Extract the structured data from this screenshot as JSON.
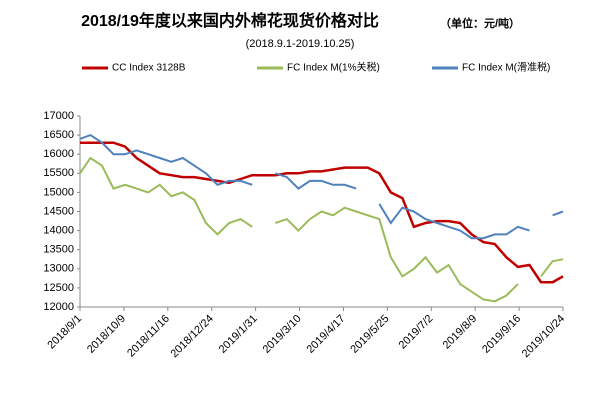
{
  "chart_data": {
    "type": "line",
    "title": "2018/19年度以来国内外棉花现货价格对比",
    "unit_note": "（单位：元/吨）",
    "subtitle": "(2018.9.1-2019.10.25)",
    "x": [
      "2018/9/1",
      "2018/9/10",
      "2018/9/20",
      "2018/9/30",
      "2018/10/10",
      "2018/10/20",
      "2018/10/30",
      "2018/11/9",
      "2018/11/19",
      "2018/11/29",
      "2018/12/9",
      "2018/12/19",
      "2018/12/29",
      "2019/1/8",
      "2019/1/18",
      "2019/1/28",
      "2019/2/7",
      "2019/2/17",
      "2019/2/27",
      "2019/3/9",
      "2019/3/19",
      "2019/3/29",
      "2019/4/8",
      "2019/4/18",
      "2019/4/28",
      "2019/5/8",
      "2019/5/18",
      "2019/5/28",
      "2019/6/7",
      "2019/6/17",
      "2019/6/27",
      "2019/7/7",
      "2019/7/17",
      "2019/7/27",
      "2019/8/6",
      "2019/8/16",
      "2019/8/26",
      "2019/9/5",
      "2019/9/15",
      "2019/9/25",
      "2019/10/5",
      "2019/10/15",
      "2019/10/24"
    ],
    "series": [
      {
        "name": "CC Index 3128B",
        "color": "#c00000",
        "values": [
          16300,
          16300,
          16300,
          16300,
          16200,
          15900,
          15700,
          15500,
          15450,
          15400,
          15400,
          15350,
          15300,
          15250,
          15350,
          15450,
          15450,
          15450,
          15500,
          15500,
          15550,
          15550,
          15600,
          15650,
          15650,
          15650,
          15500,
          15000,
          14850,
          14100,
          14200,
          14250,
          14250,
          14200,
          13900,
          13700,
          13650,
          13300,
          13050,
          13100,
          12650,
          12650,
          12800
        ]
      },
      {
        "name": "FC Index M(1%关税)",
        "color": "#9bbb59",
        "values": [
          15500,
          15900,
          15700,
          15100,
          15200,
          15100,
          15000,
          15200,
          14900,
          15000,
          14800,
          14200,
          13900,
          14200,
          14300,
          14100,
          null,
          14200,
          14300,
          14000,
          14300,
          14500,
          14400,
          14600,
          14500,
          14400,
          14300,
          13300,
          12800,
          13000,
          13300,
          12900,
          13100,
          12600,
          12400,
          12200,
          12150,
          12300,
          12600,
          null,
          12800,
          13200,
          13250
        ]
      },
      {
        "name": "FC Index M(滑准税)",
        "color": "#4f81bd",
        "values": [
          16400,
          16500,
          16300,
          16000,
          16000,
          16100,
          16000,
          15900,
          15800,
          15900,
          15700,
          15500,
          15200,
          15300,
          15300,
          15200,
          null,
          15500,
          15400,
          15100,
          15300,
          15300,
          15200,
          15200,
          15100,
          null,
          14700,
          14200,
          14600,
          14500,
          14300,
          14200,
          14100,
          14000,
          13800,
          13800,
          13900,
          13900,
          14100,
          14000,
          null,
          14400,
          14500
        ]
      }
    ],
    "xlim": [
      "2018/9/1",
      "2019/10/24"
    ],
    "xticks": [
      "2018/9/1",
      "2018/10/9",
      "2018/11/16",
      "2018/12/24",
      "2019/1/31",
      "2019/3/10",
      "2019/4/17",
      "2019/5/25",
      "2019/7/2",
      "2019/8/9",
      "2019/9/16",
      "2019/10/24"
    ],
    "ylim": [
      12000,
      17000
    ],
    "yticks": [
      12000,
      12500,
      13000,
      13500,
      14000,
      14500,
      15000,
      15500,
      16000,
      16500,
      17000
    ],
    "legend": "top",
    "grid": false
  }
}
